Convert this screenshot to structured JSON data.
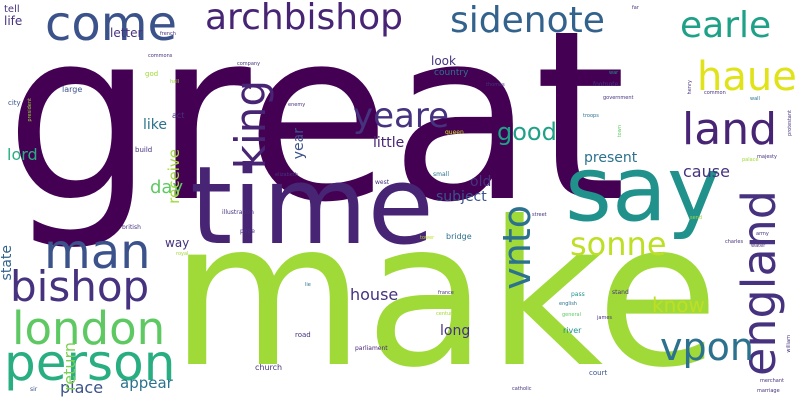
{
  "colors": {
    "background": "#ffffff",
    "dark_purple": "#440154",
    "indigo": "#482475",
    "purple": "#46327e",
    "blue": "#3b528b",
    "steel": "#33638d",
    "teal_blue": "#2c728e",
    "teal": "#21918c",
    "teal_green": "#1fa187",
    "green": "#28ae80",
    "mint": "#3fbc73",
    "light_green": "#5ec962",
    "lime": "#7ad151",
    "bright_lime": "#a0da39",
    "yellow_green": "#bddf26",
    "yellow": "#dfe318",
    "gold": "#fde725"
  },
  "words": [
    {
      "text": "great",
      "color": "#440154"
    },
    {
      "text": "make",
      "color": "#a0da39"
    },
    {
      "text": "time",
      "color": "#482475"
    },
    {
      "text": "say",
      "color": "#21918c"
    },
    {
      "text": "come",
      "color": "#3b528b"
    },
    {
      "text": "archbishop",
      "color": "#482475"
    },
    {
      "text": "sidenote",
      "color": "#33638d"
    },
    {
      "text": "earle",
      "color": "#1fa187"
    },
    {
      "text": "haue",
      "color": "#dfe318"
    },
    {
      "text": "land",
      "color": "#482475"
    },
    {
      "text": "king",
      "color": "#482475"
    },
    {
      "text": "yeare",
      "color": "#46327e"
    },
    {
      "text": "good",
      "color": "#1fa187"
    },
    {
      "text": "vnto",
      "color": "#2c728e"
    },
    {
      "text": "sonne",
      "color": "#bddf26"
    },
    {
      "text": "england",
      "color": "#46327e"
    },
    {
      "text": "man",
      "color": "#3b528b"
    },
    {
      "text": "bishop",
      "color": "#46327e"
    },
    {
      "text": "london",
      "color": "#5ec962"
    },
    {
      "text": "person",
      "color": "#28ae80"
    },
    {
      "text": "vpon",
      "color": "#2c728e"
    },
    {
      "text": "know",
      "color": "#bddf26"
    },
    {
      "text": "house",
      "color": "#46327e"
    },
    {
      "text": "place",
      "color": "#3b528b"
    },
    {
      "text": "appear",
      "color": "#2c728e"
    },
    {
      "text": "return",
      "color": "#7ad151"
    },
    {
      "text": "day",
      "color": "#5ec962"
    },
    {
      "text": "lord",
      "color": "#28ae80"
    },
    {
      "text": "state",
      "color": "#33638d"
    },
    {
      "text": "like",
      "color": "#2c728e"
    },
    {
      "text": "receive",
      "color": "#a0da39"
    },
    {
      "text": "year",
      "color": "#3b528b"
    },
    {
      "text": "little",
      "color": "#482475"
    },
    {
      "text": "present",
      "color": "#2c728e"
    },
    {
      "text": "cause",
      "color": "#46327e"
    },
    {
      "text": "subject",
      "color": "#3b528b"
    },
    {
      "text": "old",
      "color": "#46327e"
    },
    {
      "text": "long",
      "color": "#46327e"
    },
    {
      "text": "way",
      "color": "#46327e"
    },
    {
      "text": "letter",
      "color": "#46327e"
    },
    {
      "text": "look",
      "color": "#46327e"
    },
    {
      "text": "tell",
      "color": "#46327e"
    },
    {
      "text": "life",
      "color": "#46327e"
    },
    {
      "text": "country",
      "color": "#2c728e"
    },
    {
      "text": "large",
      "color": "#3b528b"
    },
    {
      "text": "god",
      "color": "#a0da39"
    },
    {
      "text": "act",
      "color": "#46327e"
    },
    {
      "text": "build",
      "color": "#46327e"
    },
    {
      "text": "city",
      "color": "#3b528b"
    },
    {
      "text": "bridge",
      "color": "#2c728e"
    },
    {
      "text": "river",
      "color": "#21918c"
    },
    {
      "text": "church",
      "color": "#46327e"
    },
    {
      "text": "court",
      "color": "#3b528b"
    },
    {
      "text": "pope",
      "color": "#46327e"
    },
    {
      "text": "west",
      "color": "#46327e"
    },
    {
      "text": "small",
      "color": "#2c728e"
    },
    {
      "text": "road",
      "color": "#46327e"
    },
    {
      "text": "parliament",
      "color": "#482475"
    },
    {
      "text": "illustration",
      "color": "#46327e"
    },
    {
      "text": "elizabeth",
      "color": "#46327e"
    },
    {
      "text": "british",
      "color": "#46327e"
    },
    {
      "text": "queen",
      "color": "#dfe318"
    },
    {
      "text": "company",
      "color": "#46327e"
    },
    {
      "text": "enemy",
      "color": "#46327e"
    },
    {
      "text": "french",
      "color": "#46327e"
    },
    {
      "text": "commons",
      "color": "#46327e"
    },
    {
      "text": "hall",
      "color": "#a0da39"
    },
    {
      "text": "thomas",
      "color": "#46327e"
    },
    {
      "text": "war",
      "color": "#21918c"
    },
    {
      "text": "footnote",
      "color": "#46327e"
    },
    {
      "text": "government",
      "color": "#46327e"
    },
    {
      "text": "troops",
      "color": "#2c728e"
    },
    {
      "text": "town",
      "color": "#5ec962"
    },
    {
      "text": "henry",
      "color": "#46327e"
    },
    {
      "text": "common",
      "color": "#46327e"
    },
    {
      "text": "wall",
      "color": "#2c728e"
    },
    {
      "text": "palace",
      "color": "#a0da39"
    },
    {
      "text": "majesty",
      "color": "#46327e"
    },
    {
      "text": "street",
      "color": "#46327e"
    },
    {
      "text": "army",
      "color": "#46327e"
    },
    {
      "text": "charles",
      "color": "#46327e"
    },
    {
      "text": "water",
      "color": "#46327e"
    },
    {
      "text": "stand",
      "color": "#46327e"
    },
    {
      "text": "english",
      "color": "#2c728e"
    },
    {
      "text": "pass",
      "color": "#21918c"
    },
    {
      "text": "general",
      "color": "#5ec962"
    },
    {
      "text": "james",
      "color": "#46327e"
    },
    {
      "text": "france",
      "color": "#46327e"
    },
    {
      "text": "century",
      "color": "#a0da39"
    },
    {
      "text": "catholic",
      "color": "#46327e"
    },
    {
      "text": "marriage",
      "color": "#46327e"
    },
    {
      "text": "merchant",
      "color": "#46327e"
    },
    {
      "text": "william",
      "color": "#46327e"
    },
    {
      "text": "protestant",
      "color": "#46327e"
    },
    {
      "text": "sir",
      "color": "#3b528b"
    },
    {
      "text": "royal",
      "color": "#a0da39"
    },
    {
      "text": "early",
      "color": "#a0da39"
    },
    {
      "text": "lie",
      "color": "#2c728e"
    },
    {
      "text": "far",
      "color": "#46327e"
    },
    {
      "text": "send",
      "color": "#a0da39"
    },
    {
      "text": "tower",
      "color": "#bddf26"
    },
    {
      "text": "president",
      "color": "#a0da39"
    }
  ]
}
